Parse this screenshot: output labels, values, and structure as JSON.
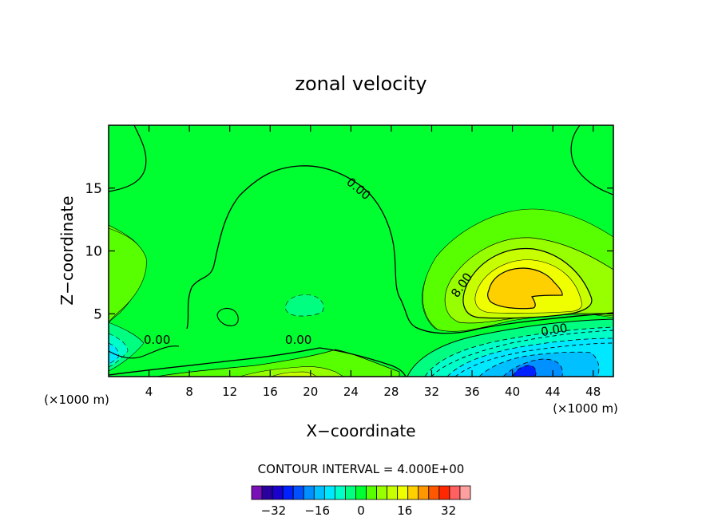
{
  "chart_data": {
    "type": "contour",
    "title": "zonal velocity",
    "xlabel": "X−coordinate",
    "ylabel": "Z−coordinate",
    "x_unit": "(×1000 m)",
    "x_unit_right": "(×1000 m)",
    "xlim": [
      0,
      50
    ],
    "ylim": [
      0,
      20
    ],
    "x_ticks": [
      4,
      8,
      12,
      16,
      20,
      24,
      28,
      32,
      36,
      40,
      44,
      48
    ],
    "y_ticks": [
      5,
      10,
      15
    ],
    "contour_interval_label": "CONTOUR INTERVAL = 4.000E+00",
    "contour_interval": 4,
    "contour_labels": [
      {
        "text": "0.00",
        "x": 24.5,
        "y": 14.7,
        "angle": 40
      },
      {
        "text": "8.00",
        "x": 35.3,
        "y": 7.1,
        "angle": -55
      },
      {
        "text": "0.00",
        "x": 4.8,
        "y": 2.6,
        "angle": 0
      },
      {
        "text": "0.00",
        "x": 18.8,
        "y": 2.6,
        "angle": 0
      },
      {
        "text": "0.00",
        "x": 44.2,
        "y": 3.4,
        "angle": -10
      }
    ],
    "colorbar": {
      "levels": [
        -40,
        -36,
        -32,
        -28,
        -24,
        -20,
        -16,
        -12,
        -8,
        -4,
        0,
        4,
        8,
        12,
        16,
        20,
        24,
        28,
        32,
        36,
        40
      ],
      "tick_labels": [
        "−32",
        "−16",
        "0",
        "16",
        "32"
      ],
      "tick_values": [
        -32,
        -16,
        0,
        16,
        32
      ],
      "colors": [
        "#7a10b8",
        "#2a00a0",
        "#1a00cc",
        "#0020ff",
        "#0050ff",
        "#0090ff",
        "#00c0ff",
        "#00e8ff",
        "#00ffc8",
        "#00ff80",
        "#00ff30",
        "#58ff00",
        "#98ff00",
        "#c8ff00",
        "#f0ff00",
        "#ffd000",
        "#ff9800",
        "#ff5800",
        "#ff2800",
        "#ff6060",
        "#ffa0a0"
      ]
    },
    "background_level_color": "#00ff30"
  }
}
